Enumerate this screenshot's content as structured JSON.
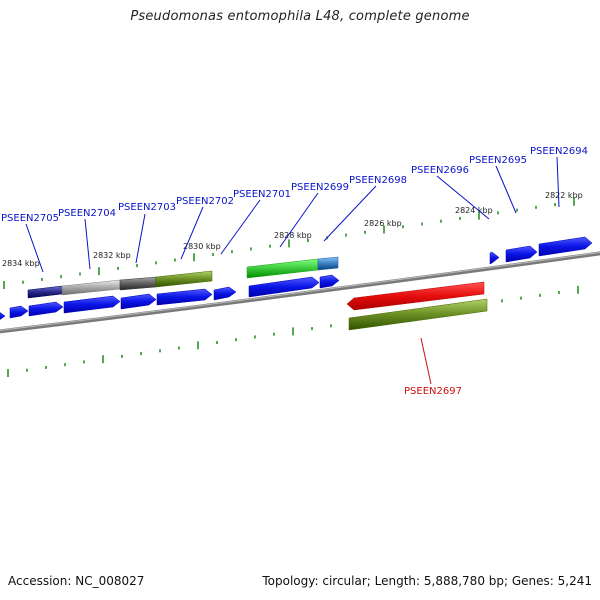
{
  "title": "Pseudomonas entomophila L48, complete genome",
  "footer": {
    "accession": "Accession: NC_008027",
    "summary": "Topology: circular; Length: 5,888,780 bp; Genes: 5,241"
  },
  "colors": {
    "cds": "#0a14e6",
    "highlight": "#e60d0d",
    "gene_label": "#0a14c8",
    "highlight_label": "#cc1111",
    "ticks": "#1a8a1a",
    "backbone": "#7a7a7a",
    "green_bar": "#3bc93b",
    "olive_bar": "#6b8e23",
    "grey_bar": "#a8a8a8",
    "dark_grey_bar": "#606060",
    "navy_bar": "#2a2a8a",
    "steel_bar": "#3f7fbf"
  },
  "ruler": {
    "labels": [
      "2834 kbp",
      "2832 kbp",
      "2830 kbp",
      "2828 kbp",
      "2826 kbp",
      "2824 kbp",
      "2822 kbp"
    ]
  },
  "genes": [
    {
      "label": "PSEEN2705"
    },
    {
      "label": "PSEEN2704"
    },
    {
      "label": "PSEEN2703"
    },
    {
      "label": "PSEEN2702"
    },
    {
      "label": "PSEEN2701"
    },
    {
      "label": "PSEEN2699"
    },
    {
      "label": "PSEEN2698"
    },
    {
      "label": "PSEEN2696"
    },
    {
      "label": "PSEEN2695"
    },
    {
      "label": "PSEEN2694"
    },
    {
      "label": "PSEEN2697"
    }
  ]
}
